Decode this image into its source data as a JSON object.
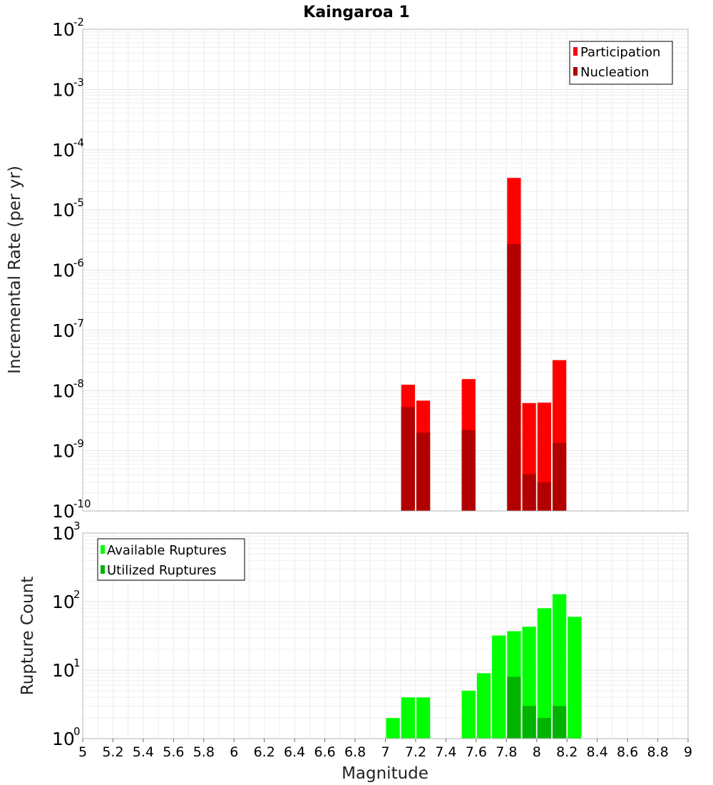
{
  "title": "Kaingaroa 1",
  "xlabel": "Magnitude",
  "x_ticks": [
    "5",
    "5.2",
    "5.4",
    "5.6",
    "5.8",
    "6",
    "6.2",
    "6.4",
    "6.6",
    "6.8",
    "7",
    "7.2",
    "7.4",
    "7.6",
    "7.8",
    "8",
    "8.2",
    "8.4",
    "8.6",
    "8.8",
    "9"
  ],
  "chart_data": [
    {
      "type": "bar",
      "ylabel": "Incremental Rate (per yr)",
      "y_scale": "log",
      "xlim": [
        5,
        9
      ],
      "ylim": [
        1e-10,
        0.01
      ],
      "bar_width": 0.1,
      "y_tick_labels": [
        {
          "base": "10",
          "exp": "-10"
        },
        {
          "base": "10",
          "exp": "-9"
        },
        {
          "base": "10",
          "exp": "-8"
        },
        {
          "base": "10",
          "exp": "-7"
        },
        {
          "base": "10",
          "exp": "-6"
        },
        {
          "base": "10",
          "exp": "-5"
        },
        {
          "base": "10",
          "exp": "-4"
        },
        {
          "base": "10",
          "exp": "-3"
        },
        {
          "base": "10",
          "exp": "-2"
        }
      ],
      "legend_position": "top-right",
      "series": [
        {
          "name": "Participation",
          "color": "#ff0000",
          "x": [
            7.15,
            7.25,
            7.55,
            7.85,
            7.95,
            8.05,
            8.15
          ],
          "values": [
            1.25e-08,
            6.8e-09,
            1.55e-08,
            3.4e-05,
            6.2e-09,
            6.3e-09,
            3.2e-08
          ]
        },
        {
          "name": "Nucleation",
          "color": "#b20000",
          "x": [
            7.15,
            7.25,
            7.55,
            7.85,
            7.95,
            8.05,
            8.15
          ],
          "values": [
            5.3e-09,
            2e-09,
            2.2e-09,
            2.7e-06,
            4.1e-10,
            3e-10,
            1.35e-09
          ]
        }
      ]
    },
    {
      "type": "bar",
      "ylabel": "Rupture Count",
      "y_scale": "log",
      "xlim": [
        5,
        9
      ],
      "ylim": [
        1,
        1000
      ],
      "bar_width": 0.1,
      "y_tick_labels": [
        {
          "base": "10",
          "exp": "0"
        },
        {
          "base": "10",
          "exp": "1"
        },
        {
          "base": "10",
          "exp": "2"
        },
        {
          "base": "10",
          "exp": "3"
        }
      ],
      "legend_position": "top-left",
      "series": [
        {
          "name": "Available Ruptures",
          "color": "#00ff00",
          "x": [
            6.75,
            7.05,
            7.15,
            7.25,
            7.45,
            7.55,
            7.65,
            7.75,
            7.85,
            7.95,
            8.05,
            8.15,
            8.25,
            8.35
          ],
          "values": [
            1,
            2,
            4,
            4,
            1,
            5,
            9,
            32,
            37,
            43,
            80,
            128,
            60,
            1
          ]
        },
        {
          "name": "Utilized Ruptures",
          "color": "#00b300",
          "x": [
            7.05,
            7.15,
            7.25,
            7.55,
            7.85,
            7.95,
            8.05,
            8.15
          ],
          "values": [
            1,
            1,
            1,
            1,
            8,
            3,
            2,
            3
          ]
        }
      ]
    }
  ]
}
